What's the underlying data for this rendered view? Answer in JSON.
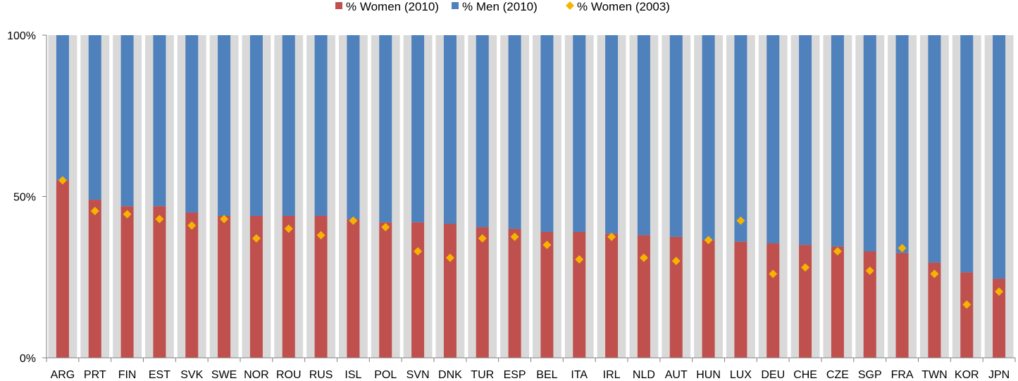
{
  "chart_data": {
    "type": "bar",
    "categories": [
      "ARG",
      "PRT",
      "FIN",
      "EST",
      "SVK",
      "SWE",
      "NOR",
      "ROU",
      "RUS",
      "ISL",
      "POL",
      "SVN",
      "DNK",
      "TUR",
      "ESP",
      "BEL",
      "ITA",
      "IRL",
      "NLD",
      "AUT",
      "HUN",
      "LUX",
      "DEU",
      "CHE",
      "CZE",
      "SGP",
      "FRA",
      "TWN",
      "KOR",
      "JPN"
    ],
    "series": [
      {
        "name": "% Women (2010)",
        "kind": "stacked-bar",
        "values": [
          0.55,
          0.49,
          0.47,
          0.47,
          0.45,
          0.44,
          0.44,
          0.44,
          0.44,
          0.43,
          0.42,
          0.42,
          0.415,
          0.405,
          0.4,
          0.39,
          0.39,
          0.385,
          0.38,
          0.375,
          0.365,
          0.36,
          0.355,
          0.35,
          0.345,
          0.33,
          0.325,
          0.295,
          0.265,
          0.245
        ]
      },
      {
        "name": "% Men (2010)",
        "kind": "stacked-bar",
        "values": [
          0.45,
          0.51,
          0.53,
          0.53,
          0.55,
          0.56,
          0.56,
          0.56,
          0.56,
          0.57,
          0.58,
          0.58,
          0.585,
          0.595,
          0.6,
          0.61,
          0.61,
          0.615,
          0.62,
          0.625,
          0.635,
          0.64,
          0.645,
          0.65,
          0.655,
          0.67,
          0.675,
          0.705,
          0.735,
          0.755
        ]
      },
      {
        "name": "% Women (2003)",
        "kind": "marker",
        "values": [
          0.55,
          0.455,
          0.445,
          0.43,
          0.41,
          0.43,
          0.37,
          0.4,
          0.38,
          0.425,
          0.405,
          0.33,
          0.31,
          0.37,
          0.375,
          0.35,
          0.305,
          0.375,
          0.31,
          0.3,
          0.365,
          0.425,
          0.26,
          0.28,
          0.33,
          0.27,
          0.34,
          0.26,
          0.165,
          0.205
        ]
      }
    ],
    "yticks": [
      {
        "value": 0,
        "label": "0%"
      },
      {
        "value": 0.5,
        "label": "50%"
      },
      {
        "value": 1,
        "label": "100%"
      }
    ],
    "ylim": [
      0,
      1
    ],
    "legend_position": "top-center",
    "grid": false,
    "colors": {
      "women_2010": "#c0504d",
      "men_2010": "#4f81bd",
      "women_2003": "#f6b400",
      "background_band": "#d9d9d9",
      "axis": "#7f7f7f",
      "text": "#000000"
    }
  }
}
